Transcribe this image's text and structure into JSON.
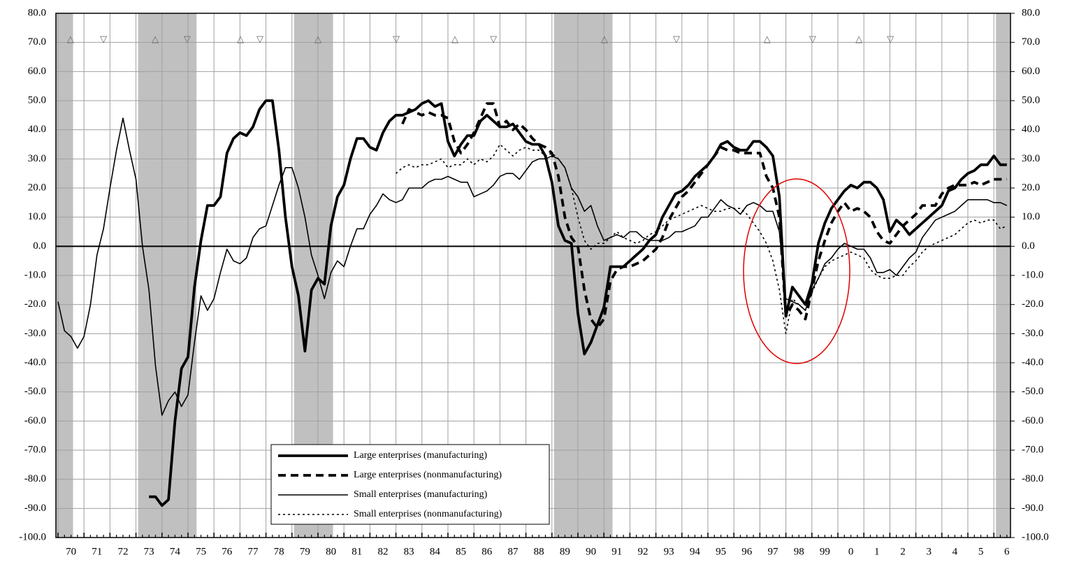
{
  "chart_data": {
    "type": "line",
    "x": [
      1970,
      1970.25,
      1970.5,
      1970.75,
      1971,
      1971.25,
      1971.5,
      1971.75,
      1972,
      1972.25,
      1972.5,
      1972.75,
      1973,
      1973.25,
      1973.5,
      1973.75,
      1974,
      1974.25,
      1974.5,
      1974.75,
      1975,
      1975.25,
      1975.5,
      1975.75,
      1976,
      1976.25,
      1976.5,
      1976.75,
      1977,
      1977.25,
      1977.5,
      1977.75,
      1978,
      1978.25,
      1978.5,
      1978.75,
      1979,
      1979.25,
      1979.5,
      1979.75,
      1980,
      1980.25,
      1980.5,
      1980.75,
      1981,
      1981.25,
      1981.5,
      1981.75,
      1982,
      1982.25,
      1982.5,
      1982.75,
      1983,
      1983.25,
      1983.5,
      1983.75,
      1984,
      1984.25,
      1984.5,
      1984.75,
      1985,
      1985.25,
      1985.5,
      1985.75,
      1986,
      1986.25,
      1986.5,
      1986.75,
      1987,
      1987.25,
      1987.5,
      1987.75,
      1988,
      1988.25,
      1988.5,
      1988.75,
      1989,
      1989.25,
      1989.5,
      1989.75,
      1990,
      1990.25,
      1990.5,
      1990.75,
      1991,
      1991.25,
      1991.5,
      1991.75,
      1992,
      1992.25,
      1992.5,
      1992.75,
      1993,
      1993.25,
      1993.5,
      1993.75,
      1994,
      1994.25,
      1994.5,
      1994.75,
      1995,
      1995.25,
      1995.5,
      1995.75,
      1996,
      1996.25,
      1996.5,
      1996.75,
      1997,
      1997.25,
      1997.5,
      1997.75,
      1998,
      1998.25,
      1998.5,
      1998.75,
      1999,
      1999.25,
      1999.5,
      1999.75,
      2000,
      2000.25,
      2000.5,
      2000.75,
      2001,
      2001.25,
      2001.5,
      2001.75,
      2002,
      2002.25,
      2002.5,
      2002.75,
      2003,
      2003.25,
      2003.5,
      2003.75,
      2004,
      2004.25,
      2004.5,
      2004.75,
      2005,
      2005.25,
      2005.5,
      2005.75,
      2006,
      2006.25,
      2006.5
    ],
    "series": [
      {
        "name": "Large enterprises (manufacturing)",
        "color": "#000000",
        "line_style": "solid",
        "line_weight": "heavy",
        "values": [
          null,
          null,
          null,
          null,
          null,
          null,
          null,
          null,
          null,
          null,
          null,
          null,
          null,
          null,
          -86,
          -86,
          -89,
          -87,
          -60,
          -42,
          -38,
          -14,
          2,
          14,
          14,
          17,
          32,
          37,
          39,
          38,
          41,
          47,
          50,
          50,
          33,
          10,
          -7,
          -17,
          -36,
          -15,
          -11,
          -13,
          7,
          17,
          21,
          30,
          37,
          37,
          34,
          33,
          39,
          43,
          45,
          45,
          46,
          47,
          49,
          50,
          48,
          49,
          36,
          31,
          35,
          38,
          38,
          43,
          45,
          43,
          41,
          41,
          42,
          39,
          36,
          35,
          35,
          31,
          22,
          7,
          2,
          1,
          -23,
          -37,
          -33,
          -27,
          -21,
          -7,
          -7,
          -7,
          -5,
          -3,
          -1,
          2,
          4,
          10,
          14,
          18,
          19,
          21,
          24,
          26,
          28,
          31,
          35,
          36,
          34,
          33,
          33,
          36,
          36,
          34,
          31,
          17,
          -24,
          -14,
          -17,
          -20,
          -13,
          1,
          8,
          13,
          16,
          19,
          21,
          20,
          22,
          22,
          20,
          16,
          5,
          9,
          7,
          4,
          6,
          8,
          10,
          12,
          14,
          19,
          20,
          23,
          25,
          26,
          28,
          28,
          31,
          28,
          28
        ]
      },
      {
        "name": "Large enterprises (nonmanufacturing)",
        "color": "#000000",
        "line_style": "dashed",
        "line_weight": "heavy",
        "values": [
          null,
          null,
          null,
          null,
          null,
          null,
          null,
          null,
          null,
          null,
          null,
          null,
          null,
          null,
          null,
          null,
          null,
          null,
          null,
          null,
          null,
          null,
          null,
          null,
          null,
          null,
          null,
          null,
          null,
          null,
          null,
          null,
          null,
          null,
          null,
          null,
          null,
          null,
          null,
          null,
          null,
          null,
          null,
          null,
          null,
          null,
          null,
          null,
          null,
          null,
          null,
          null,
          null,
          42,
          47,
          46,
          45,
          46,
          45,
          45,
          44,
          36,
          32,
          35,
          39,
          44,
          49,
          49,
          41,
          43,
          40,
          42,
          40,
          37,
          35,
          34,
          32,
          24,
          10,
          3,
          0,
          -15,
          -25,
          -28,
          -25,
          -12,
          -8,
          -7,
          -7,
          -6,
          -5,
          -3,
          -1,
          3,
          9,
          13,
          17,
          19,
          22,
          25,
          28,
          31,
          34,
          33,
          33,
          32,
          32,
          32,
          32,
          24,
          20,
          10,
          -24,
          -20,
          -22,
          -25,
          -15,
          -5,
          2,
          8,
          12,
          15,
          12,
          13,
          12,
          10,
          5,
          2,
          1,
          4,
          7,
          9,
          11,
          14,
          14,
          14,
          18,
          20,
          21,
          21,
          21,
          22,
          21,
          22,
          23,
          23,
          23
        ]
      },
      {
        "name": "Small enterprises (manufacturing)",
        "color": "#000000",
        "line_style": "solid",
        "line_weight": "light",
        "values": [
          -19,
          -29,
          -31,
          -35,
          -31,
          -20,
          -3,
          6,
          20,
          33,
          44,
          33,
          23,
          0,
          -15,
          -41,
          -58,
          -53,
          -50,
          -55,
          -51,
          -33,
          -17,
          -22,
          -18,
          -9,
          -1,
          -5,
          -6,
          -4,
          3,
          6,
          7,
          14,
          21,
          27,
          27,
          20,
          10,
          -3,
          -10,
          -18,
          -9,
          -5,
          -7,
          0,
          6,
          6,
          11,
          14,
          18,
          16,
          15,
          16,
          20,
          20,
          20,
          22,
          23,
          23,
          24,
          23,
          22,
          22,
          17,
          18,
          19,
          21,
          24,
          25,
          25,
          23,
          26,
          29,
          30,
          30,
          31,
          30,
          27,
          20,
          17,
          12,
          14,
          7,
          2,
          3,
          4,
          3,
          5,
          5,
          3,
          2,
          2,
          2,
          3,
          5,
          5,
          6,
          7,
          10,
          10,
          13,
          16,
          14,
          13,
          11,
          14,
          15,
          14,
          12,
          12,
          5,
          -18,
          -19,
          -20,
          -22,
          -15,
          -11,
          -6,
          -4,
          -1,
          1,
          0,
          -1,
          -1,
          -4,
          -9,
          -9,
          -8,
          -10,
          -7,
          -4,
          -2,
          3,
          6,
          9,
          10,
          11,
          12,
          14,
          16,
          16,
          16,
          16,
          15,
          15,
          14
        ]
      },
      {
        "name": "Small enterprises (nonmanufacturing)",
        "color": "#000000",
        "line_style": "dotted",
        "line_weight": "light",
        "values": [
          null,
          null,
          null,
          null,
          null,
          null,
          null,
          null,
          null,
          null,
          null,
          null,
          null,
          null,
          null,
          null,
          null,
          null,
          null,
          null,
          null,
          null,
          null,
          null,
          null,
          null,
          null,
          null,
          null,
          null,
          null,
          null,
          null,
          null,
          null,
          null,
          null,
          null,
          null,
          null,
          null,
          null,
          null,
          null,
          null,
          null,
          null,
          null,
          null,
          null,
          null,
          null,
          25,
          27,
          28,
          27,
          28,
          28,
          29,
          30,
          27,
          28,
          28,
          30,
          28,
          30,
          29,
          31,
          35,
          33,
          31,
          33,
          34,
          33,
          33,
          31,
          32,
          30,
          27,
          20,
          10,
          2,
          -1,
          1,
          1,
          3,
          5,
          3,
          2,
          1,
          2,
          4,
          5,
          7,
          9,
          10,
          11,
          12,
          13,
          14,
          13,
          12,
          12,
          13,
          13,
          13,
          11,
          8,
          5,
          1,
          -5,
          -15,
          -30,
          -18,
          -20,
          -22,
          -16,
          -11,
          -7,
          -5,
          -4,
          -3,
          -2,
          -3,
          -4,
          -8,
          -10,
          -11,
          -11,
          -10,
          -10,
          -7,
          -5,
          -2,
          0,
          1,
          2,
          3,
          4,
          6,
          8,
          9,
          8,
          9,
          9,
          6,
          7
        ]
      }
    ],
    "xlim": [
      1969.92,
      2006.64
    ],
    "xticks": [
      {
        "value": 1970,
        "label": "70"
      },
      {
        "value": 1971,
        "label": "71"
      },
      {
        "value": 1972,
        "label": "72"
      },
      {
        "value": 1973,
        "label": "73"
      },
      {
        "value": 1974,
        "label": "74"
      },
      {
        "value": 1975,
        "label": "75"
      },
      {
        "value": 1976,
        "label": "76"
      },
      {
        "value": 1977,
        "label": "77"
      },
      {
        "value": 1978,
        "label": "78"
      },
      {
        "value": 1979,
        "label": "79"
      },
      {
        "value": 1980,
        "label": "80"
      },
      {
        "value": 1981,
        "label": "81"
      },
      {
        "value": 1982,
        "label": "82"
      },
      {
        "value": 1983,
        "label": "83"
      },
      {
        "value": 1984,
        "label": "84"
      },
      {
        "value": 1985,
        "label": "85"
      },
      {
        "value": 1986,
        "label": "86"
      },
      {
        "value": 1987,
        "label": "87"
      },
      {
        "value": 1988,
        "label": "88"
      },
      {
        "value": 1989,
        "label": "89"
      },
      {
        "value": 1990,
        "label": "90"
      },
      {
        "value": 1991,
        "label": "91"
      },
      {
        "value": 1992,
        "label": "92"
      },
      {
        "value": 1993,
        "label": "93"
      },
      {
        "value": 1994,
        "label": "94"
      },
      {
        "value": 1995,
        "label": "95"
      },
      {
        "value": 1996,
        "label": "96"
      },
      {
        "value": 1997,
        "label": "97"
      },
      {
        "value": 1998,
        "label": "98"
      },
      {
        "value": 1999,
        "label": "99"
      },
      {
        "value": 2000,
        "label": "0"
      },
      {
        "value": 2001,
        "label": "1"
      },
      {
        "value": 2002,
        "label": "2"
      },
      {
        "value": 2003,
        "label": "3"
      },
      {
        "value": 2004,
        "label": "4"
      },
      {
        "value": 2005,
        "label": "5"
      },
      {
        "value": 2006,
        "label": "6"
      }
    ],
    "ylim": [
      -100,
      80
    ],
    "yticks": [
      {
        "value": 80,
        "label": "80.0"
      },
      {
        "value": 70,
        "label": "70.0"
      },
      {
        "value": 60,
        "label": "60.0"
      },
      {
        "value": 50,
        "label": "50.0"
      },
      {
        "value": 40,
        "label": "40.0"
      },
      {
        "value": 30,
        "label": "30.0"
      },
      {
        "value": 20,
        "label": "20.0"
      },
      {
        "value": 10,
        "label": "10.0"
      },
      {
        "value": 0,
        "label": "0.0"
      },
      {
        "value": -10,
        "label": "-10.0"
      },
      {
        "value": -20,
        "label": "-20.0"
      },
      {
        "value": -30,
        "label": "-30.0"
      },
      {
        "value": -40,
        "label": "-40.0"
      },
      {
        "value": -50,
        "label": "-50.0"
      },
      {
        "value": -60,
        "label": "-60.0"
      },
      {
        "value": -70,
        "label": "-70.0"
      },
      {
        "value": -80,
        "label": "-80.0"
      },
      {
        "value": -90,
        "label": "-90.0"
      },
      {
        "value": -100,
        "label": "-100.0"
      }
    ],
    "y2lim": [
      -100,
      80
    ],
    "y2ticks": [
      {
        "value": 80,
        "label": "80.0"
      },
      {
        "value": 70,
        "label": "70.0"
      },
      {
        "value": 60,
        "label": "60.0"
      },
      {
        "value": 50,
        "label": "50.0"
      },
      {
        "value": 40,
        "label": "40.0"
      },
      {
        "value": 30,
        "label": "30.0"
      },
      {
        "value": 20,
        "label": "20.0"
      },
      {
        "value": 10,
        "label": "10.0"
      },
      {
        "value": 0,
        "label": "0.0"
      },
      {
        "value": -10,
        "label": "-10.0"
      },
      {
        "value": -20,
        "label": "-20.0"
      },
      {
        "value": -30,
        "label": "-30.0"
      },
      {
        "value": -40,
        "label": "-40.0"
      },
      {
        "value": -50,
        "label": "-50.0"
      },
      {
        "value": -60,
        "label": "-60.0"
      },
      {
        "value": -70,
        "label": "-70.0"
      },
      {
        "value": -80,
        "label": "-80.0"
      },
      {
        "value": -90,
        "label": "-90.0"
      },
      {
        "value": -100,
        "label": "-100.0"
      }
    ],
    "grid": true,
    "legend": "lower center",
    "shaded_periods": [
      [
        1969.92,
        1970.58
      ],
      [
        1973.08,
        1975.33
      ],
      [
        1979.08,
        1980.58
      ],
      [
        1989.08,
        1991.33
      ],
      [
        2006.08,
        2006.64
      ]
    ],
    "shade_color": "#c0c0c0",
    "marker_y": 71,
    "markers": [
      {
        "x": 1970.48,
        "label": "△"
      },
      {
        "x": 1971.75,
        "label": "▽"
      },
      {
        "x": 1973.74,
        "label": "△"
      },
      {
        "x": 1974.97,
        "label": "▽"
      },
      {
        "x": 1977.02,
        "label": "△"
      },
      {
        "x": 1977.77,
        "label": "▽"
      },
      {
        "x": 1980.0,
        "label": "△"
      },
      {
        "x": 1983.01,
        "label": "▽"
      },
      {
        "x": 1985.27,
        "label": "△"
      },
      {
        "x": 1986.75,
        "label": "▽"
      },
      {
        "x": 1991.02,
        "label": "△"
      },
      {
        "x": 1993.79,
        "label": "▽"
      },
      {
        "x": 1997.28,
        "label": "△"
      },
      {
        "x": 1999.03,
        "label": "▽"
      },
      {
        "x": 2000.81,
        "label": "△"
      },
      {
        "x": 2002.02,
        "label": "▽"
      }
    ]
  }
}
